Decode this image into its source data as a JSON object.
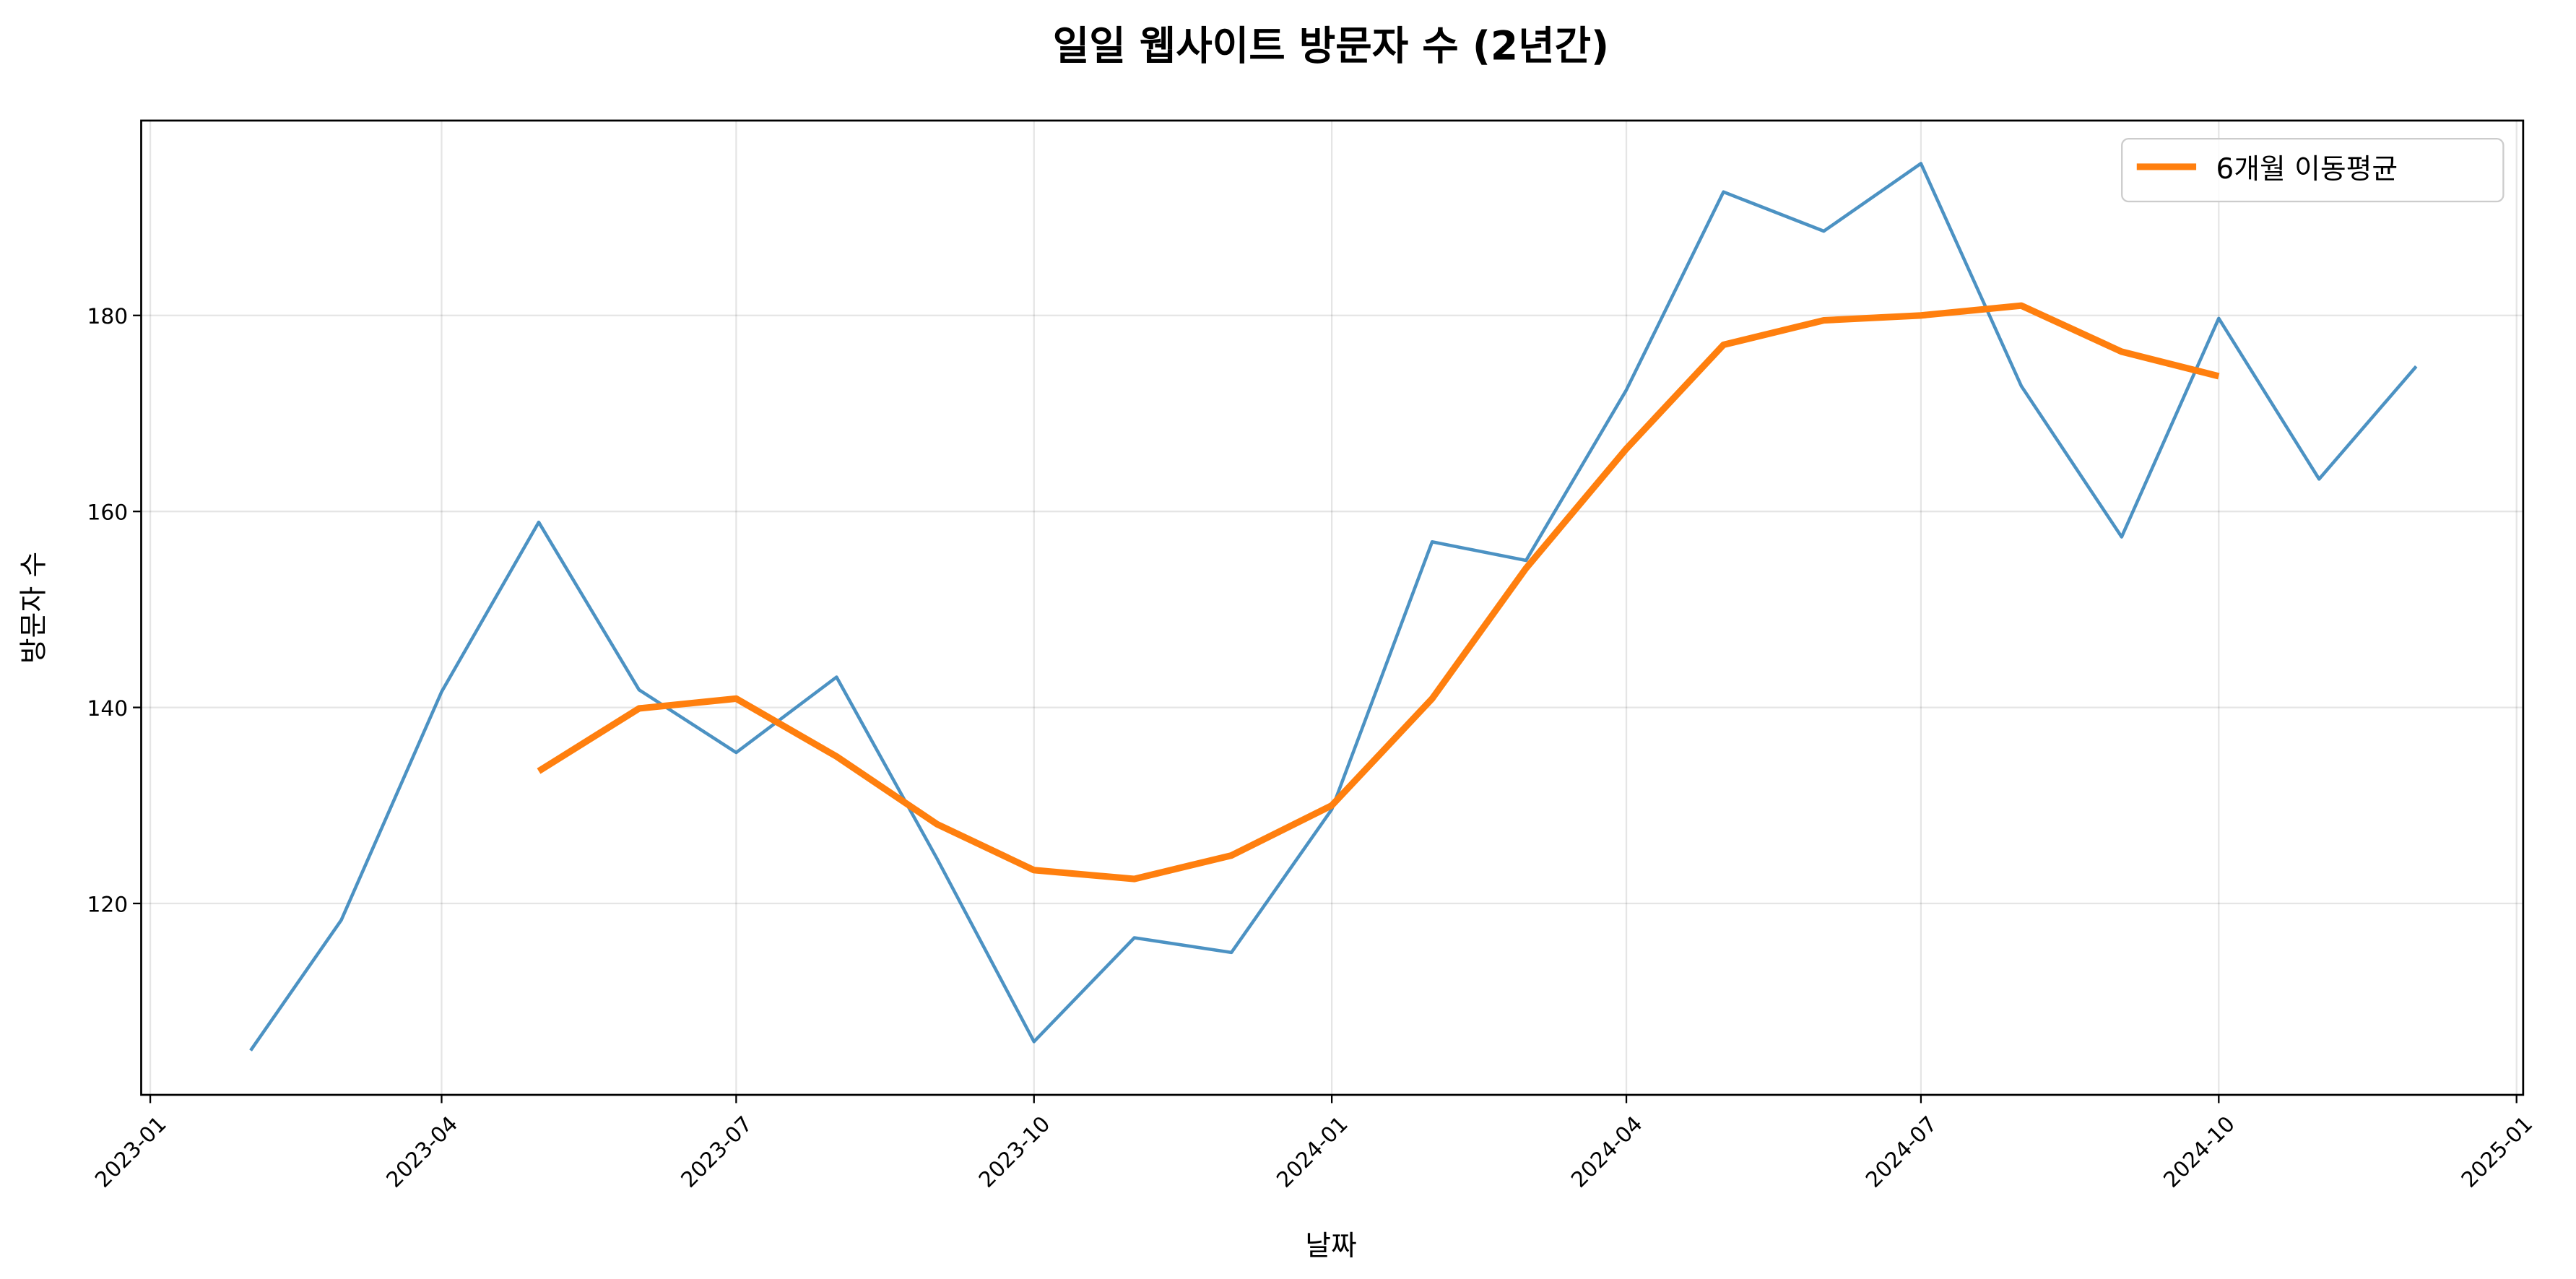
{
  "chart_data": {
    "type": "line",
    "title": "일일 웹사이트 방문자 수 (2년간)",
    "xlabel": "날짜",
    "ylabel": "방문자 수",
    "ylim": [
      101,
      199.5
    ],
    "xlim": [
      "2022-12-20",
      "2025-01-08"
    ],
    "grid": true,
    "legend": {
      "entries": [
        "6개월 이동평균"
      ],
      "placement": "top-right"
    },
    "xticks": [
      "2023-01",
      "2023-04",
      "2023-07",
      "2023-10",
      "2024-01",
      "2024-04",
      "2024-07",
      "2024-10",
      "2025-01"
    ],
    "yticks": [
      120,
      140,
      160,
      180
    ],
    "series": [
      {
        "name": "방문자 수",
        "color": "#1f77b4",
        "x": [
          "2023-02",
          "2023-03",
          "2023-04",
          "2023-05",
          "2023-06",
          "2023-07",
          "2023-08",
          "2023-09",
          "2023-10",
          "2023-11",
          "2023-12",
          "2024-01",
          "2024-02",
          "2024-03",
          "2024-04",
          "2024-05",
          "2024-06",
          "2024-07",
          "2024-08",
          "2024-09",
          "2024-10",
          "2024-11",
          "2024-12"
        ],
        "values": [
          105.0,
          118.3,
          141.6,
          158.9,
          141.8,
          135.4,
          143.1,
          124.6,
          105.9,
          116.5,
          115.0,
          129.6,
          156.9,
          155.0,
          172.4,
          192.6,
          188.6,
          195.5,
          172.8,
          157.4,
          179.7,
          163.3,
          174.8
        ]
      },
      {
        "name": "6개월 이동평균",
        "color": "#ff7f0e",
        "x": [
          "2023-05",
          "2023-06",
          "2023-07",
          "2023-08",
          "2023-09",
          "2023-10",
          "2023-11",
          "2023-12",
          "2024-01",
          "2024-02",
          "2024-03",
          "2024-04",
          "2024-05",
          "2024-06",
          "2024-07",
          "2024-08",
          "2024-09",
          "2024-10"
        ],
        "values": [
          133.5,
          139.9,
          140.9,
          135.0,
          128.1,
          123.4,
          122.5,
          124.9,
          130.0,
          140.9,
          154.2,
          166.4,
          177.0,
          179.5,
          180.0,
          181.0,
          176.3,
          173.8
        ]
      }
    ]
  }
}
